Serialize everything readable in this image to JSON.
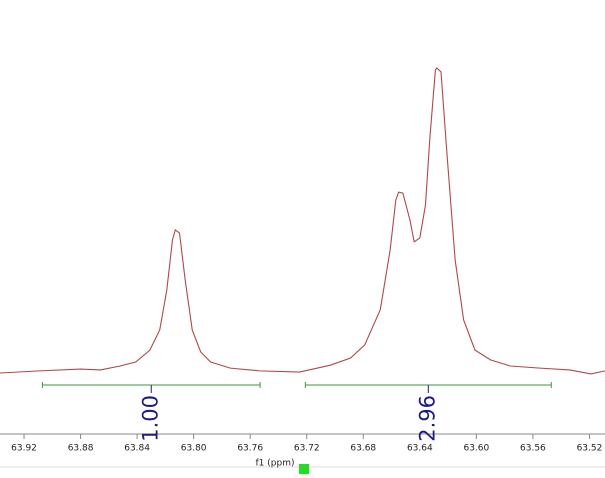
{
  "chart_data": {
    "type": "line",
    "x_label": "f1 (ppm)",
    "xlim": [
      63.937,
      63.509
    ],
    "ylim": [
      -20,
      122.3
    ],
    "xticks": [
      63.92,
      63.88,
      63.84,
      {
        "value": 63.8,
        "label": "63.80"
      },
      63.76,
      63.72,
      63.68,
      63.64,
      {
        "value": 63.6,
        "label": "63.60"
      },
      63.56,
      63.52
    ],
    "color": "#b04848",
    "x": [
      63.937,
      63.909,
      63.88,
      63.866,
      63.852,
      63.841,
      63.831,
      63.824,
      63.819,
      63.815,
      63.813,
      63.81,
      63.806,
      63.801,
      63.795,
      63.788,
      63.774,
      63.753,
      63.725,
      63.703,
      63.689,
      63.679,
      63.668,
      63.661,
      63.657,
      63.655,
      63.652,
      63.647,
      63.644,
      63.64,
      63.636,
      63.633,
      63.629,
      63.628,
      63.625,
      63.621,
      63.615,
      63.609,
      63.601,
      63.59,
      63.576,
      63.555,
      63.534,
      63.519,
      63.509
    ],
    "values": [
      0,
      0.7,
      1.3,
      1.0,
      2.3,
      3.6,
      7.5,
      14.1,
      27.2,
      43.6,
      46.9,
      45.9,
      30.5,
      14.1,
      6.9,
      3.6,
      1.6,
      0.7,
      0.3,
      2.6,
      4.9,
      9.2,
      20.7,
      40.3,
      56.7,
      59.3,
      59.0,
      50.2,
      43.0,
      44.3,
      55.1,
      76.4,
      99.3,
      100,
      98.7,
      73.1,
      37.0,
      17.4,
      7.5,
      4.3,
      2.3,
      1.6,
      1.0,
      -0.3,
      0.7
    ],
    "integrals": {
      "color": "#3a9a3a",
      "ranges": [
        [
          63.907,
          63.753
        ],
        [
          63.721,
          63.547
        ]
      ],
      "values": [
        1,
        2.96
      ],
      "value_labels": [
        "1.00",
        "2.96"
      ]
    }
  }
}
